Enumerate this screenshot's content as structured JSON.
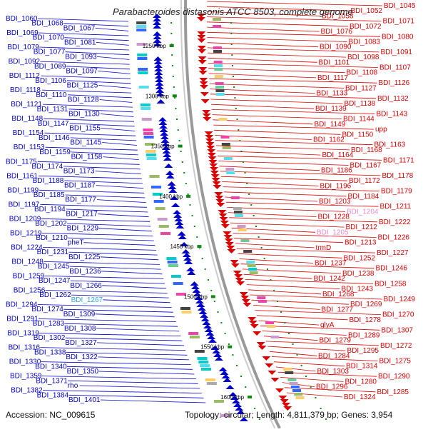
{
  "title": "Parabacteroides distasonis ATCC 8503, complete genome",
  "accession": "Accession: NC_009615",
  "topology": "Topology: circular; Length: 4,811,379 bp; Genes: 3,954",
  "colors": {
    "forward": "#0000cc",
    "reverse": "#dd0000",
    "rna_blue": "#33aadd",
    "rna_pink": "#ee88cc",
    "ring": "#999999",
    "tick": "#118811"
  },
  "ticks": [
    "1250 kbp",
    "1300 kbp",
    "1350 kbp",
    "1400 kbp",
    "1450 kbp",
    "1500 kbp",
    "1550 kbp",
    "1600 kbp"
  ],
  "left_labels": [
    "BDI_1060",
    "BDI_1068",
    "BDI_1067",
    "BDI_1069",
    "BDI_1070",
    "BDI_1081",
    "BDI_1079",
    "BDI_1077",
    "BDI_1093",
    "BDI_1092",
    "BDI_1089",
    "BDI_1097",
    "BDI_1112",
    "BDI_1106",
    "BDI_1125",
    "BDI_1118",
    "BDI_1110",
    "BDI_1128",
    "BDI_1121",
    "BDI_1131",
    "BDI_1130",
    "BDI_1148",
    "BDI_1147",
    "BDI_1155",
    "BDI_1154",
    "BDI_1146",
    "BDI_1145",
    "BDI_1153",
    "BDI_1159",
    "BDI_1158",
    "BDI_1175",
    "BDI_1174",
    "BDI_1173",
    "BDI_1161",
    "BDI_1188",
    "BDI_1187",
    "BDI_1199",
    "BDI_1185",
    "BDI_1177",
    "BDI_1197",
    "BDI_1194",
    "BDI_1217",
    "BDI_1209",
    "BDI_1202",
    "BDI_1229",
    "BDI_1219",
    "BDI_1210",
    "pheT",
    "BDI_1224",
    "BDI_1231",
    "BDI_1225",
    "BDI_1248",
    "BDI_1245",
    "BDI_1236",
    "BDI_1259",
    "BDI_1247",
    "BDI_1266",
    "BDI_1256",
    "BDI_1262",
    "BDI_1267",
    "BDI_1294",
    "BDI_1274",
    "BDI_1309",
    "BDI_1291",
    "BDI_1283",
    "BDI_1308",
    "BDI_1319",
    "BDI_1302",
    "BDI_1327",
    "BDI_1316",
    "BDI_1338",
    "BDI_1322",
    "BDI_1330",
    "BDI_1340",
    "BDI_1350",
    "BDI_1359",
    "BDI_1371",
    "rho",
    "BDI_1382",
    "BDI_1384",
    "BDI_1401"
  ],
  "right_labels": [
    "BDI_1045",
    "BDI_1052",
    "BDI_1058",
    "BDI_1071",
    "BDI_1072",
    "BDI_1076",
    "BDI_1080",
    "BDI_1083",
    "BDI_1090",
    "BDI_1091",
    "BDI_1098",
    "BDI_1101",
    "BDI_1107",
    "BDI_1108",
    "BDI_1117",
    "BDI_1126",
    "BDI_1127",
    "BDI_1133",
    "BDI_1132",
    "BDI_1138",
    "BDI_1139",
    "BDI_1143",
    "BDI_1144",
    "BDI_1149",
    "upp",
    "BDI_1150",
    "BDI_1162",
    "BDI_1163",
    "BDI_1168",
    "BDI_1164",
    "BDI_1171",
    "BDI_1167",
    "BDI_1186",
    "BDI_1178",
    "BDI_1172",
    "BDI_1196",
    "BDI_1179",
    "BDI_1184",
    "BDI_1203",
    "BDI_1211",
    "BDI_1204",
    "BDI_1228",
    "BDI_1222",
    "BDI_1212",
    "BDI_1205",
    "BDI_1226",
    "BDI_1213",
    "trmD",
    "BDI_1227",
    "BDI_1252",
    "BDI_1237",
    "BDI_1246",
    "BDI_1238",
    "BDI_1242",
    "BDI_1258",
    "BDI_1243",
    "BDI_1268",
    "BDI_1249",
    "BDI_1269",
    "BDI_1277",
    "BDI_1270",
    "BDI_1278",
    "glyA",
    "BDI_1307",
    "BDI_1289",
    "BDI_1279",
    "BDI_1272",
    "BDI_1295",
    "BDI_1284",
    "BDI_1275",
    "BDI_1314",
    "BDI_1303",
    "BDI_1290",
    "BDI_1280",
    "BDI_1296",
    "BDI_1285",
    "BDI_1324"
  ]
}
